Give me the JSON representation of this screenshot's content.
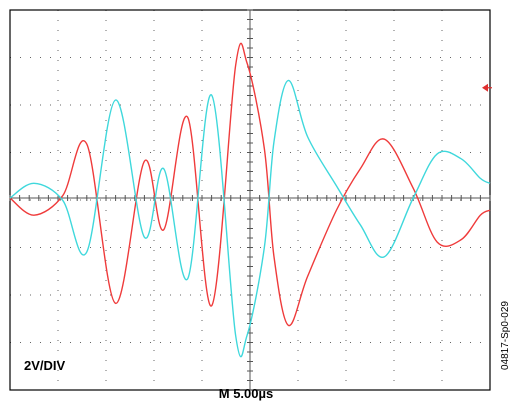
{
  "colors": {
    "ch1": "#ef3b3b",
    "ch2": "#3fd8dc",
    "marker": "#e03030",
    "grid": "#000000"
  },
  "labels": {
    "volts_per_div": "2V/DIV",
    "timebase": "M 5.00µs",
    "figure_id": "04817-Sp0-029"
  },
  "chart_data": {
    "type": "line",
    "title": "",
    "xlabel": "M 5.00µs",
    "ylabel": "2V/DIV",
    "x_unit": "µs",
    "y_unit": "V",
    "xlim": [
      -25,
      25
    ],
    "ylim": [
      -8,
      8
    ],
    "grid": true,
    "legend": "none",
    "ground_marker_level": 4.5,
    "series": [
      {
        "key": "ch1",
        "x": [
          -25,
          -22.5,
          -19.5,
          -17,
          -14,
          -11,
          -9,
          -6.5,
          -4,
          -1.5,
          -0.3,
          1.5,
          2.5,
          4,
          6,
          9,
          11.5,
          14,
          17,
          19.5,
          22,
          24,
          25
        ],
        "y": [
          0,
          -0.7,
          0.1,
          2.2,
          -4.3,
          1.5,
          -1.3,
          3.3,
          -4.4,
          5.4,
          5.5,
          2,
          -2.4,
          -5.2,
          -3.2,
          -0.5,
          1.2,
          2.4,
          0.4,
          -1.8,
          -1.7,
          -0.7,
          -0.5
        ]
      },
      {
        "key": "ch2",
        "x": [
          -25,
          -22.5,
          -19.5,
          -17,
          -14,
          -11,
          -9,
          -6.5,
          -4,
          -1.5,
          -0.3,
          1.5,
          2.5,
          4,
          6,
          9,
          11.5,
          14,
          17,
          19.5,
          22,
          24,
          25
        ],
        "y": [
          0,
          0.6,
          -0.1,
          -2.2,
          4,
          -1.6,
          1.2,
          -3.3,
          4.2,
          -5.6,
          -5.6,
          -2,
          2.3,
          4.8,
          2.5,
          0.5,
          -1.1,
          -2.4,
          0,
          1.8,
          1.6,
          0.8,
          0.6
        ]
      }
    ]
  }
}
